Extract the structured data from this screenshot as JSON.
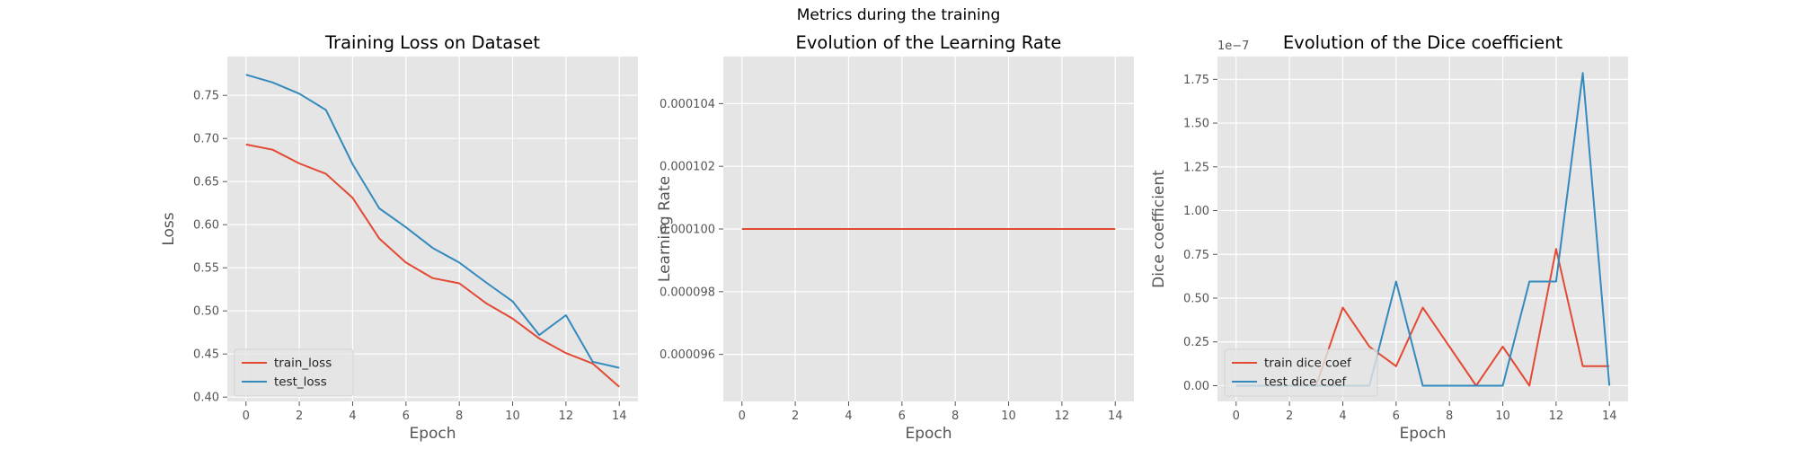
{
  "figure": {
    "title": "Metrics during the training"
  },
  "chart_data": [
    {
      "type": "line",
      "title": "Training Loss on Dataset",
      "xlabel": "Epoch",
      "ylabel": "Loss",
      "xlim": [
        -0.7,
        14.7
      ],
      "ylim": [
        0.395,
        0.795
      ],
      "xticks": [
        0,
        2,
        4,
        6,
        8,
        10,
        12,
        14
      ],
      "yticks": [
        0.4,
        0.45,
        0.5,
        0.55,
        0.6,
        0.65,
        0.7,
        0.75
      ],
      "ytick_labels": [
        "0.40",
        "0.45",
        "0.50",
        "0.55",
        "0.60",
        "0.65",
        "0.70",
        "0.75"
      ],
      "grid": true,
      "legend": "lower-left",
      "x": [
        0,
        1,
        2,
        3,
        4,
        5,
        6,
        7,
        8,
        9,
        10,
        11,
        12,
        13,
        14
      ],
      "series": [
        {
          "name": "train_loss",
          "color": "#E24A33",
          "values": [
            0.693,
            0.687,
            0.671,
            0.659,
            0.631,
            0.584,
            0.556,
            0.538,
            0.532,
            0.509,
            0.491,
            0.468,
            0.451,
            0.439,
            0.412
          ]
        },
        {
          "name": "test_loss",
          "color": "#348ABD",
          "values": [
            0.774,
            0.765,
            0.752,
            0.733,
            0.67,
            0.619,
            0.597,
            0.573,
            0.556,
            0.533,
            0.511,
            0.472,
            0.495,
            0.441,
            0.434
          ]
        }
      ]
    },
    {
      "type": "line",
      "title": "Evolution of the Learning Rate",
      "xlabel": "Epoch",
      "ylabel": "Learning Rate",
      "xlim": [
        -0.7,
        14.7
      ],
      "ylim": [
        9.45e-05,
        0.0001055
      ],
      "xticks": [
        0,
        2,
        4,
        6,
        8,
        10,
        12,
        14
      ],
      "yticks": [
        9.6e-05,
        9.8e-05,
        0.0001,
        0.000102,
        0.000104
      ],
      "ytick_labels": [
        "0.000096",
        "0.000098",
        "0.000100",
        "0.000102",
        "0.000104"
      ],
      "grid": true,
      "x": [
        0,
        1,
        2,
        3,
        4,
        5,
        6,
        7,
        8,
        9,
        10,
        11,
        12,
        13,
        14
      ],
      "series": [
        {
          "color": "#E24A33",
          "values": [
            0.0001,
            0.0001,
            0.0001,
            0.0001,
            0.0001,
            0.0001,
            0.0001,
            0.0001,
            0.0001,
            0.0001,
            0.0001,
            0.0001,
            0.0001,
            0.0001,
            0.0001
          ]
        }
      ]
    },
    {
      "type": "line",
      "title": "Evolution of the Dice coefficient",
      "xlabel": "Epoch",
      "ylabel": "Dice coefficient",
      "offset_label": "1e−7",
      "xlim": [
        -0.7,
        14.7
      ],
      "ylim": [
        -0.09,
        1.88
      ],
      "xticks": [
        0,
        2,
        4,
        6,
        8,
        10,
        12,
        14
      ],
      "yticks": [
        0.0,
        0.25,
        0.5,
        0.75,
        1.0,
        1.25,
        1.5,
        1.75
      ],
      "ytick_labels": [
        "0.00",
        "0.25",
        "0.50",
        "0.75",
        "1.00",
        "1.25",
        "1.50",
        "1.75"
      ],
      "grid": true,
      "legend": "lower-left",
      "x": [
        0,
        1,
        2,
        3,
        4,
        5,
        6,
        7,
        8,
        9,
        10,
        11,
        12,
        13,
        14
      ],
      "series": [
        {
          "name": "train dice coef",
          "color": "#E24A33",
          "values": [
            0,
            0,
            0,
            0,
            0.446,
            0.223,
            0.111,
            0.446,
            0.223,
            0,
            0.223,
            0,
            0.781,
            0.111,
            0.111
          ]
        },
        {
          "name": "test dice coef",
          "color": "#348ABD",
          "values": [
            0,
            0,
            0,
            0,
            0,
            0,
            0.595,
            0,
            0,
            0,
            0,
            0.595,
            0.595,
            1.786,
            0
          ]
        }
      ]
    }
  ]
}
